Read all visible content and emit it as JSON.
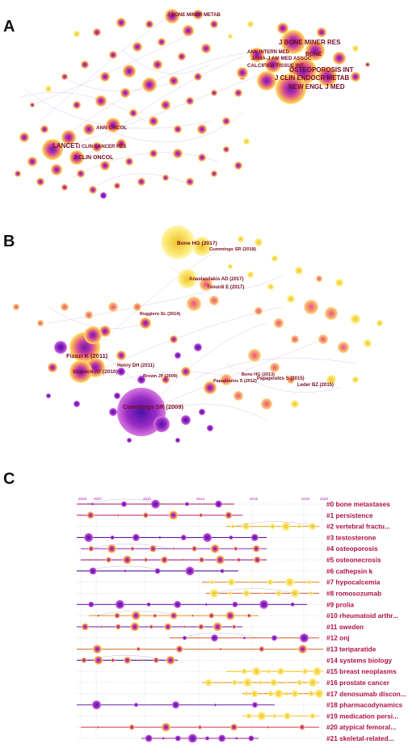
{
  "panels": {
    "a": {
      "letter": "A",
      "labels": [
        "J BONE MINER METAB",
        "J BONE MINER RES",
        "BONE",
        "ANN INTERN MED",
        "JAMA-J AM MED ASSOC",
        "CALCIFIED TISSUE INT",
        "OSTEOPOROSIS INT",
        "J CLIN ENDOCR METAB",
        "NEW ENGL J MED",
        "ANN ONCOL",
        "LANCET",
        "J CLIN CANCER RES",
        "J CLIN ONCOL"
      ]
    },
    "b": {
      "letter": "B",
      "labels": [
        "Bone HG (2017)",
        "Cummings SR (2018)",
        "Anastasilakis AD (2017)",
        "Tsourdi E (2017)",
        "Ruggiero SL (2014)",
        "Papapoulos S (2015)",
        "Fizazi K (2011)",
        "Henry DH (2011)",
        "Stopeck AT (2010)",
        "Brown JP (2009)",
        "Bone HG (2013)",
        "Papapoulos S (2012)",
        "Leder BZ (2015)",
        "Cummings SR (2009)"
      ]
    },
    "c": {
      "letter": "C",
      "years": [
        "2006",
        "2007",
        "2010",
        "2013",
        "2016",
        "2019",
        "2020"
      ],
      "clusters": [
        "#0 bone metastases",
        "#1 persistence",
        "#2 vertebral fractu...",
        "#3 testosterone",
        "#4 osteoporosis",
        "#5 osteonecrosis",
        "#6 cathepsin k",
        "#7 hypocalcemia",
        "#8 romosozumab",
        "#9 prolia",
        "#10 rheumatoid arthr...",
        "#11 sweden",
        "#12 onj",
        "#13 teriparatide",
        "#14 systems biology",
        "#15 breast neoplasms",
        "#16 prostate cancer",
        "#17 denosumab discon...",
        "#18 pharmacodynamics",
        "#19 medication persi...",
        "#20 atypical femoral...",
        "#21 skeletal-related..."
      ]
    }
  },
  "colors": {
    "label": "#7a0a1e",
    "cluster_label": "#b0104c",
    "year": "#b21bb9"
  }
}
